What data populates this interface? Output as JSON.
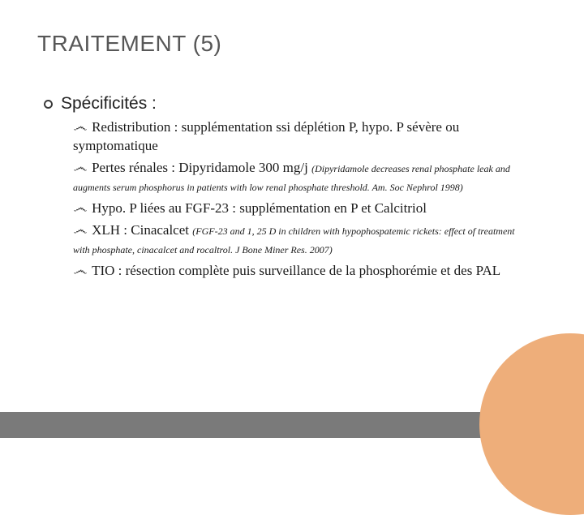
{
  "title": "TRAITEMENT (5)",
  "level1_label": "Spécificités :",
  "items": {
    "i1_lead": "Redistribution",
    "i1_rest": " : supplémentation ssi déplétion P, hypo. P sévère ou symptomatique",
    "i2_lead": "Pertes rénales",
    "i2_rest": " : Dipyridamole 300 mg/j ",
    "i2_ref": "(Dipyridamole decreases renal phosphate leak and augments serum phosphorus in patients with low renal phosphate threshold. Am. Soc Nephrol 1998)",
    "i3_lead": "Hypo. P",
    "i3_rest": " liées au FGF-23 : supplémentation en P et Calcitriol",
    "i4_lead": "XLH",
    "i4_rest": " : Cinacalcet ",
    "i4_ref": "(FGF-23 and 1, 25 D in children with hypophospatemic rickets: effect of treatment with phosphate, cinacalcet and rocaltrol. J Bone Miner Res. 2007)",
    "i5_lead": "TIO",
    "i5_rest": " : résection complète puis surveillance de la phosphorémie et des PAL"
  },
  "colors": {
    "title": "#575757",
    "text": "#1a1a1a",
    "bar": "#7a7a7a",
    "big_circle": "#eeae7a",
    "small_circle": "#e8e8e8",
    "background": "#ffffff"
  }
}
